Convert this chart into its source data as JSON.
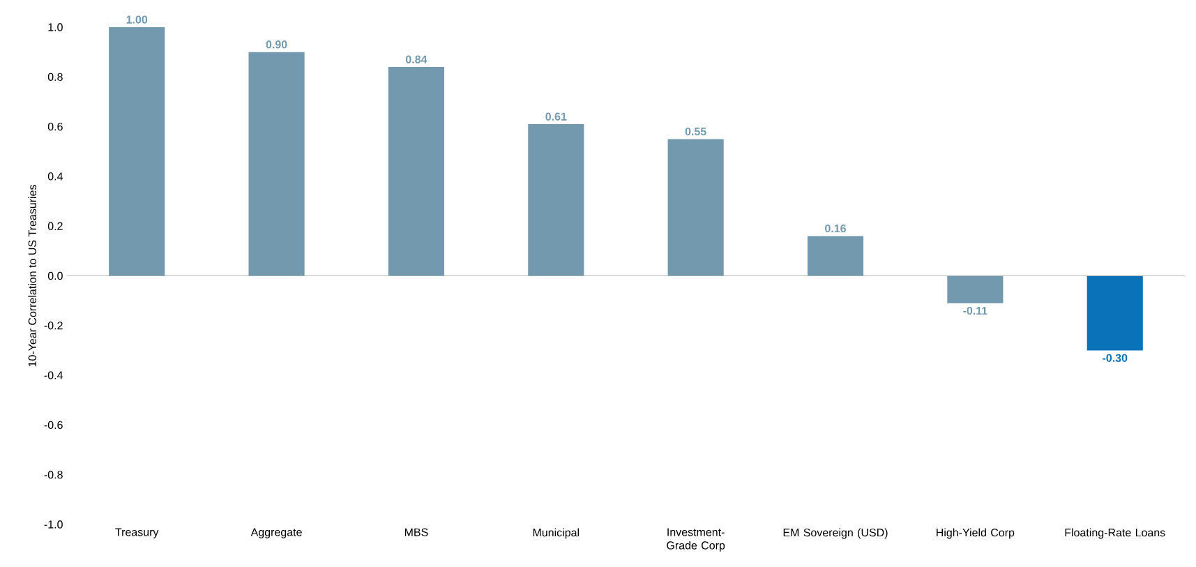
{
  "chart_data": {
    "type": "bar",
    "ylabel": "10-Year Correlation to US Treasuries",
    "categories": [
      "Treasury",
      "Aggregate",
      "MBS",
      "Municipal",
      "Investment-Grade Corp",
      "EM Sovereign (USD)",
      "High-Yield Corp",
      "Floating-Rate Loans"
    ],
    "values": [
      1.0,
      0.9,
      0.84,
      0.61,
      0.55,
      0.16,
      -0.11,
      -0.3
    ],
    "value_labels": [
      "1.00",
      "0.90",
      "0.84",
      "0.61",
      "0.55",
      "0.16",
      "-0.11",
      "-0.30"
    ],
    "colors": [
      "#7399ae",
      "#7399ae",
      "#7399ae",
      "#7399ae",
      "#7399ae",
      "#7399ae",
      "#7399ae",
      "#0a72b9"
    ],
    "ylim": [
      -1.0,
      1.0
    ],
    "yticks": [
      {
        "value": -1.0,
        "label": "-1.0"
      },
      {
        "value": -0.8,
        "label": "-0.8"
      },
      {
        "value": -0.6,
        "label": "-0.6"
      },
      {
        "value": -0.4,
        "label": "-0.4"
      },
      {
        "value": -0.2,
        "label": "-0.2"
      },
      {
        "value": 0.0,
        "label": "0.0"
      },
      {
        "value": 0.2,
        "label": "0.2"
      },
      {
        "value": 0.4,
        "label": "0.4"
      },
      {
        "value": 0.6,
        "label": "0.6"
      },
      {
        "value": 0.8,
        "label": "0.8"
      },
      {
        "value": 1.0,
        "label": "1.0"
      }
    ]
  }
}
